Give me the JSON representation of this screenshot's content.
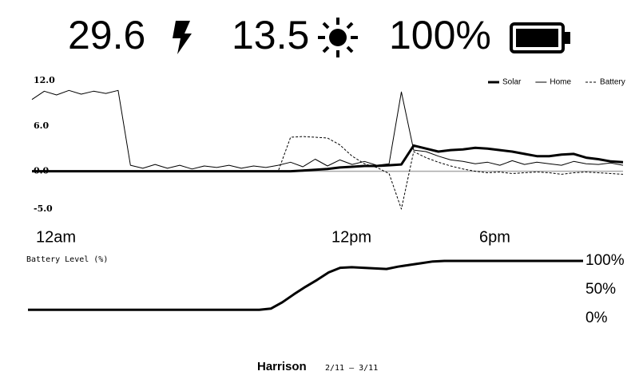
{
  "header": {
    "power": "29.6",
    "solar": "13.5",
    "battery": "100%"
  },
  "chart_data": [
    {
      "type": "line",
      "legend": "upper right",
      "x": [
        0,
        0.5,
        1,
        1.5,
        2,
        2.5,
        3,
        3.5,
        4,
        4.5,
        5,
        5.5,
        6,
        6.5,
        7,
        7.5,
        8,
        8.5,
        9,
        9.5,
        10,
        10.5,
        11,
        11.5,
        12,
        12.5,
        13,
        13.5,
        14,
        14.5,
        15,
        15.5,
        16,
        16.5,
        17,
        17.5,
        18,
        18.5,
        19,
        19.5,
        20,
        20.5,
        21,
        21.5,
        22,
        22.5,
        23,
        23.5,
        24
      ],
      "xlim": [
        0,
        24
      ],
      "xticks": [
        {
          "value": 0,
          "label": "12am"
        },
        {
          "value": 12,
          "label": "12pm"
        },
        {
          "value": 18,
          "label": "6pm"
        }
      ],
      "ylim": [
        -5,
        12
      ],
      "yticks": [
        {
          "value": 12,
          "label": "12.0"
        },
        {
          "value": 6,
          "label": "6.0"
        },
        {
          "value": 0,
          "label": "0.0"
        },
        {
          "value": -5,
          "label": "-5.0"
        }
      ],
      "series": [
        {
          "name": "Home",
          "color": "#000000",
          "style": "thin",
          "values": [
            9.5,
            10.6,
            10.1,
            10.7,
            10.2,
            10.6,
            10.3,
            10.7,
            0.8,
            0.4,
            0.9,
            0.4,
            0.8,
            0.3,
            0.7,
            0.5,
            0.8,
            0.4,
            0.7,
            0.5,
            0.8,
            1.2,
            0.6,
            1.6,
            0.7,
            1.5,
            0.9,
            1.3,
            0.8,
            1.0,
            10.5,
            2.8,
            2.6,
            2.0,
            1.5,
            1.3,
            1.0,
            1.2,
            0.8,
            1.4,
            0.9,
            1.2,
            1.0,
            0.8,
            1.3,
            1.0,
            0.9,
            1.1,
            0.8
          ]
        },
        {
          "name": "Battery",
          "color": "#000000",
          "style": "dashed",
          "values": [
            0,
            0,
            0,
            0,
            0,
            0,
            0,
            0,
            0,
            0,
            0,
            0,
            0,
            0,
            0,
            0,
            0,
            0,
            0,
            0,
            0,
            4.5,
            4.6,
            4.5,
            4.4,
            3.5,
            2.0,
            1.0,
            0.5,
            -0.3,
            -5.0,
            2.6,
            1.8,
            1.2,
            0.7,
            0.3,
            0.0,
            -0.2,
            -0.1,
            -0.3,
            -0.2,
            -0.1,
            -0.2,
            -0.4,
            -0.2,
            -0.1,
            -0.2,
            -0.3,
            -0.4
          ]
        },
        {
          "name": "Solar",
          "color": "#000000",
          "style": "thick",
          "values": [
            0,
            0,
            0,
            0,
            0,
            0,
            0,
            0,
            0,
            0,
            0,
            0,
            0,
            0,
            0,
            0,
            0,
            0,
            0,
            0,
            0,
            0,
            0.1,
            0.2,
            0.3,
            0.5,
            0.6,
            0.7,
            0.7,
            0.8,
            0.9,
            3.4,
            3.0,
            2.6,
            2.8,
            2.9,
            3.1,
            3.0,
            2.8,
            2.6,
            2.3,
            2.0,
            2.0,
            2.2,
            2.3,
            1.8,
            1.6,
            1.3,
            1.2
          ]
        }
      ]
    },
    {
      "type": "line",
      "title": "Battery Level (%)",
      "x": [
        0,
        0.5,
        1,
        1.5,
        2,
        2.5,
        3,
        3.5,
        4,
        4.5,
        5,
        5.5,
        6,
        6.5,
        7,
        7.5,
        8,
        8.5,
        9,
        9.5,
        10,
        10.5,
        11,
        11.5,
        12,
        12.5,
        13,
        13.5,
        14,
        14.5,
        15,
        15.5,
        16,
        16.5,
        17,
        17.5,
        18,
        18.5,
        19,
        19.5,
        20,
        20.5,
        21,
        21.5,
        22,
        22.5,
        23,
        23.5,
        24
      ],
      "xlim": [
        0,
        24
      ],
      "ylim": [
        0,
        100
      ],
      "yticks": [
        {
          "value": 100,
          "label": "100%"
        },
        {
          "value": 50,
          "label": "50%"
        },
        {
          "value": 0,
          "label": "0%"
        }
      ],
      "series": [
        {
          "color": "#000000",
          "style": "thick",
          "values": [
            15,
            15,
            15,
            15,
            15,
            15,
            15,
            15,
            15,
            15,
            15,
            15,
            15,
            15,
            15,
            15,
            15,
            15,
            15,
            15,
            15,
            17,
            28,
            42,
            55,
            67,
            80,
            88,
            89,
            88,
            87,
            86,
            90,
            93,
            96,
            99,
            100,
            100,
            100,
            100,
            100,
            100,
            100,
            100,
            100,
            100,
            100,
            100,
            100
          ]
        }
      ]
    }
  ],
  "footer": {
    "name": "Harrison",
    "range": "2/11 – 3/11"
  }
}
